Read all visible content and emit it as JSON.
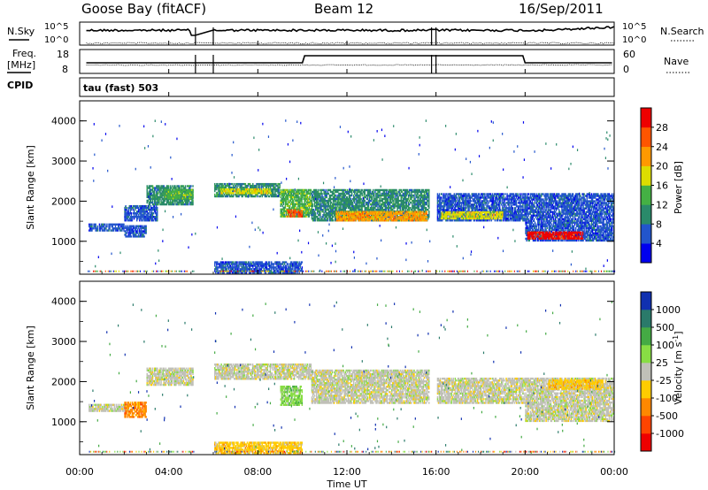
{
  "header": {
    "station": "Goose Bay (fitACF)",
    "beam": "Beam 12",
    "date": "16/Sep/2011"
  },
  "noise_panel": {
    "left_label": "N.Sky",
    "right_label": "N.Search",
    "left_ticks": [
      "10^5",
      "10^0"
    ],
    "right_ticks": [
      "10^5",
      "10^0"
    ]
  },
  "freq_panel": {
    "left_label_1": "Freq.",
    "left_label_2": "[MHz]",
    "left_ticks": [
      "18",
      "8"
    ],
    "right_label": "Nave",
    "right_ticks": [
      "60",
      "0"
    ]
  },
  "cpid_panel": {
    "label": "CPID",
    "program": "tau (fast) 503"
  },
  "power_panel": {
    "ylabel": "Slant Range [km]",
    "yticks": [
      "4000",
      "3000",
      "2000",
      "1000"
    ],
    "colorbar_label": "Power [dB]",
    "colorbar_ticks": [
      "28",
      "24",
      "20",
      "16",
      "12",
      "8",
      "4"
    ],
    "colors": [
      "#0000ee",
      "#2255cc",
      "#2a8a6a",
      "#44b044",
      "#dddd00",
      "#ff9900",
      "#ff5500",
      "#ee0000"
    ]
  },
  "velocity_panel": {
    "ylabel": "Slant Range [km]",
    "yticks": [
      "4000",
      "3000",
      "2000",
      "1000"
    ],
    "colorbar_label": "Velocity [m s",
    "colorbar_sup": "-1",
    "colorbar_label_end": "]",
    "colorbar_ticks": [
      "1000",
      "500",
      "100",
      "25",
      "-25",
      "-100",
      "-500",
      "-1000"
    ],
    "colors": [
      "#1030b0",
      "#2a7a6a",
      "#44aa44",
      "#88dd44",
      "#c0c0b8",
      "#ffcc00",
      "#ff8800",
      "#ff4400",
      "#ee0000"
    ]
  },
  "x_axis": {
    "label": "Time UT",
    "ticks": [
      "00:00",
      "04:00",
      "08:00",
      "12:00",
      "16:00",
      "20:00",
      "00:00"
    ]
  },
  "chart_data": {
    "type": "heatmap",
    "x_range_hours": [
      0,
      24
    ],
    "y_range_km": [
      180,
      4500
    ],
    "data_gaps_hours": [
      [
        5.2,
        6.0
      ],
      [
        15.8,
        16.0
      ]
    ],
    "power_bands": [
      {
        "t0": 0.4,
        "t1": 2.0,
        "r0": 1250,
        "r1": 1450,
        "level": 1
      },
      {
        "t0": 2.0,
        "t1": 3.5,
        "r0": 1500,
        "r1": 1900,
        "level": 1
      },
      {
        "t0": 2.0,
        "t1": 3.0,
        "r0": 1100,
        "r1": 1400,
        "level": 1
      },
      {
        "t0": 3.0,
        "t1": 5.1,
        "r0": 1900,
        "r1": 2400,
        "level": 2
      },
      {
        "t0": 3.8,
        "t1": 5.1,
        "r0": 2050,
        "r1": 2300,
        "level": 3
      },
      {
        "t0": 6.0,
        "t1": 9.0,
        "r0": 2100,
        "r1": 2450,
        "level": 2
      },
      {
        "t0": 6.3,
        "t1": 8.6,
        "r0": 2180,
        "r1": 2320,
        "level": 4
      },
      {
        "t0": 9.0,
        "t1": 10.4,
        "r0": 1600,
        "r1": 2300,
        "level": 3
      },
      {
        "t0": 9.3,
        "t1": 10.0,
        "r0": 1600,
        "r1": 1800,
        "level": 6
      },
      {
        "t0": 10.4,
        "t1": 15.7,
        "r0": 1500,
        "r1": 2300,
        "level": 2
      },
      {
        "t0": 11.5,
        "t1": 15.6,
        "r0": 1500,
        "r1": 1750,
        "level": 5
      },
      {
        "t0": 16.0,
        "t1": 20.0,
        "r0": 1500,
        "r1": 2200,
        "level": 1
      },
      {
        "t0": 16.2,
        "t1": 19.0,
        "r0": 1550,
        "r1": 1750,
        "level": 4
      },
      {
        "t0": 20.0,
        "t1": 24.0,
        "r0": 1000,
        "r1": 2200,
        "level": 1
      },
      {
        "t0": 20.1,
        "t1": 22.6,
        "r0": 1050,
        "r1": 1250,
        "level": 7
      },
      {
        "t0": 6.0,
        "t1": 10.0,
        "r0": 200,
        "r1": 500,
        "level": 1
      }
    ],
    "velocity_bands": [
      {
        "t0": 0.4,
        "t1": 2.2,
        "r0": 1250,
        "r1": 1450,
        "level": 4
      },
      {
        "t0": 2.0,
        "t1": 3.0,
        "r0": 1100,
        "r1": 1500,
        "level": 6
      },
      {
        "t0": 3.0,
        "t1": 5.1,
        "r0": 1900,
        "r1": 2350,
        "level": 4
      },
      {
        "t0": 6.0,
        "t1": 10.4,
        "r0": 2050,
        "r1": 2450,
        "level": 4
      },
      {
        "t0": 9.0,
        "t1": 10.0,
        "r0": 1400,
        "r1": 1900,
        "level": 3
      },
      {
        "t0": 10.4,
        "t1": 15.7,
        "r0": 1450,
        "r1": 2300,
        "level": 4
      },
      {
        "t0": 16.0,
        "t1": 20.0,
        "r0": 1450,
        "r1": 2100,
        "level": 4
      },
      {
        "t0": 20.0,
        "t1": 24.0,
        "r0": 1000,
        "r1": 2100,
        "level": 4
      },
      {
        "t0": 21.0,
        "t1": 23.5,
        "r0": 1800,
        "r1": 2050,
        "level": 5
      },
      {
        "t0": 6.0,
        "t1": 10.0,
        "r0": 200,
        "r1": 500,
        "level": 5
      }
    ]
  }
}
